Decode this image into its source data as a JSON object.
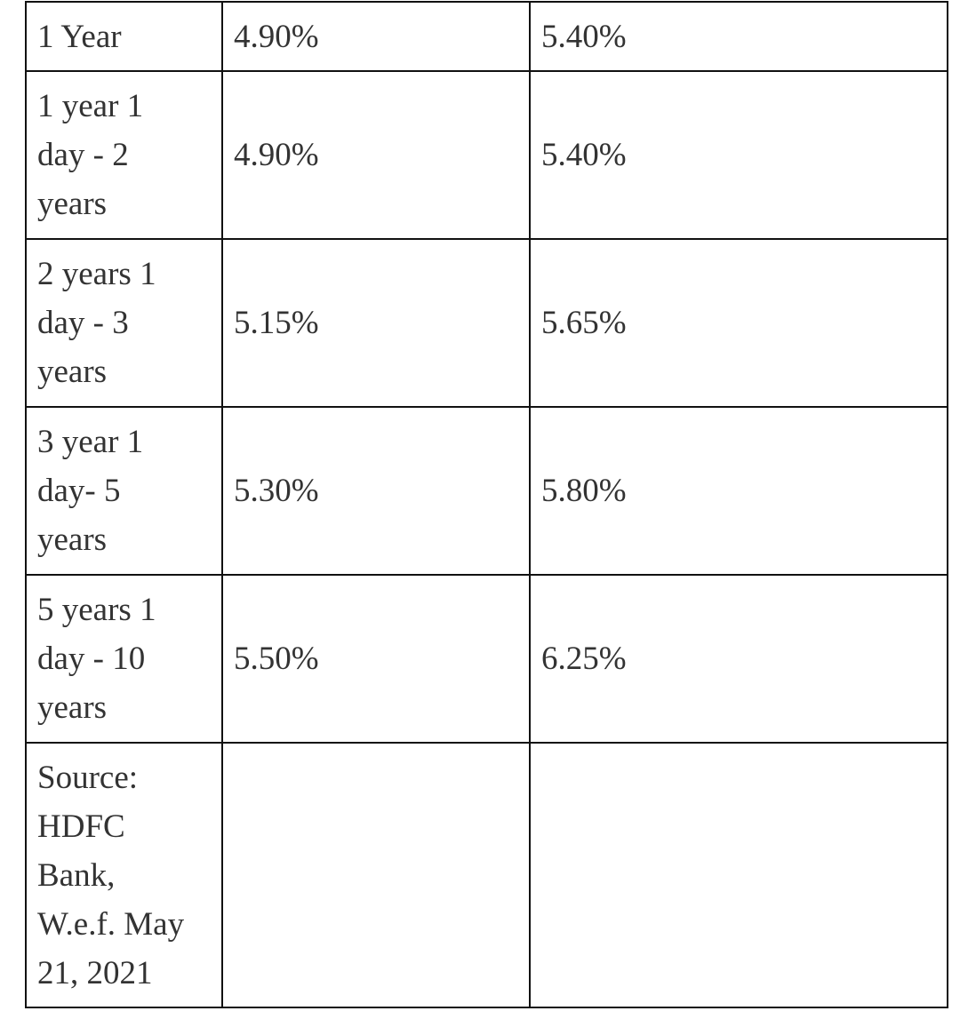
{
  "table": {
    "rows": [
      {
        "tenure": "1 Year",
        "general": "4.90%",
        "senior": "5.40%"
      },
      {
        "tenure": "1 year 1 day - 2 years",
        "general": "4.90%",
        "senior": "5.40%"
      },
      {
        "tenure": "2 years 1 day - 3 years",
        "general": "5.15%",
        "senior": "5.65%"
      },
      {
        "tenure": "3 year 1 day- 5 years",
        "general": "5.30%",
        "senior": "5.80%"
      },
      {
        "tenure": "5 years 1 day - 10 years",
        "general": "5.50%",
        "senior": "6.25%"
      }
    ],
    "source": "Source: HDFC Bank, W.e.f. May 21, 2021"
  }
}
